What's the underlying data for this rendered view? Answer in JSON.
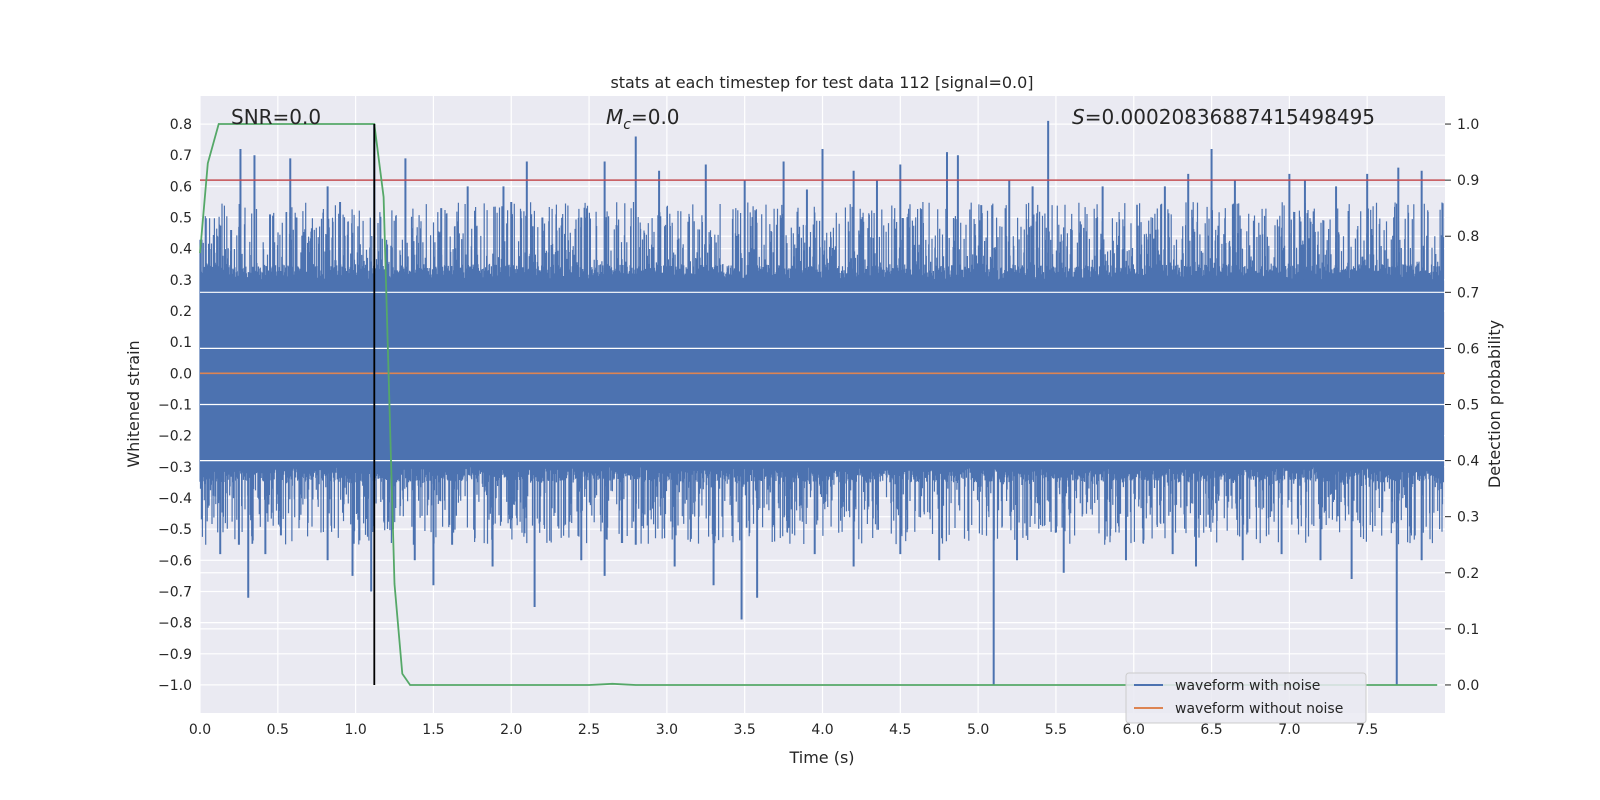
{
  "chart_data": {
    "type": "line",
    "title": "stats at each timestep for test data 112 [signal=0.0]",
    "xlabel": "Time (s)",
    "ylabel": "Whitened strain",
    "y2label": "Detection probability",
    "xlim": [
      0.0,
      8.0
    ],
    "ylim": [
      -1.09,
      0.89
    ],
    "y2lim": [
      -0.05,
      1.05
    ],
    "xticks": [
      0.0,
      0.5,
      1.0,
      1.5,
      2.0,
      2.5,
      3.0,
      3.5,
      4.0,
      4.5,
      5.0,
      5.5,
      6.0,
      6.5,
      7.0,
      7.5
    ],
    "xtick_labels": [
      "0.0",
      "0.5",
      "1.0",
      "1.5",
      "2.0",
      "2.5",
      "3.0",
      "3.5",
      "4.0",
      "4.5",
      "5.0",
      "5.5",
      "6.0",
      "6.5",
      "7.0",
      "7.5"
    ],
    "yticks": [
      0.8,
      0.7,
      0.6,
      0.5,
      0.4,
      0.3,
      0.2,
      0.1,
      0.0,
      -0.1,
      -0.2,
      -0.3,
      -0.4,
      -0.5,
      -0.6,
      -0.7,
      -0.8,
      -0.9,
      -1.0
    ],
    "ytick_labels": [
      "0.8",
      "0.7",
      "0.6",
      "0.5",
      "0.4",
      "0.3",
      "0.2",
      "0.1",
      "0.0",
      "−0.1",
      "−0.2",
      "−0.3",
      "−0.4",
      "−0.5",
      "−0.6",
      "−0.7",
      "−0.8",
      "−0.9",
      "−1.0"
    ],
    "y2ticks": [
      1.0,
      0.9,
      0.8,
      0.7,
      0.6,
      0.5,
      0.4,
      0.3,
      0.2,
      0.1,
      0.0
    ],
    "y2tick_labels": [
      "1.0",
      "0.9",
      "0.8",
      "0.7",
      "0.6",
      "0.5",
      "0.4",
      "0.3",
      "0.2",
      "0.1",
      "0.0"
    ],
    "grid": true,
    "annotations": {
      "snr": "SNR=0.0",
      "mc_symbol": "M",
      "mc_sub": "c",
      "mc_value": "=0.0",
      "s_symbol": "S",
      "s_value": "=0.00020836887415498495"
    },
    "noise_band": {
      "core_abs": 0.3,
      "typical_peak": [
        0.35,
        0.55
      ],
      "seed": 112
    },
    "series": [
      {
        "name": "waveform with noise",
        "color": "#4c72b0",
        "axis": "left",
        "spikes_up": [
          [
            0.07,
            0.34
          ],
          [
            0.2,
            0.46
          ],
          [
            0.26,
            0.72
          ],
          [
            0.35,
            0.7
          ],
          [
            0.45,
            0.51
          ],
          [
            0.58,
            0.69
          ],
          [
            0.62,
            0.5
          ],
          [
            0.82,
            0.6
          ],
          [
            0.9,
            0.55
          ],
          [
            1.12,
            0.8
          ],
          [
            1.32,
            0.69
          ],
          [
            1.55,
            0.53
          ],
          [
            1.72,
            0.6
          ],
          [
            1.95,
            0.6
          ],
          [
            2.0,
            0.55
          ],
          [
            2.1,
            0.68
          ],
          [
            2.2,
            0.5
          ],
          [
            2.45,
            0.5
          ],
          [
            2.6,
            0.68
          ],
          [
            2.8,
            0.76
          ],
          [
            2.95,
            0.65
          ],
          [
            3.25,
            0.67
          ],
          [
            3.5,
            0.62
          ],
          [
            3.75,
            0.68
          ],
          [
            3.9,
            0.59
          ],
          [
            4.0,
            0.72
          ],
          [
            4.2,
            0.65
          ],
          [
            4.35,
            0.62
          ],
          [
            4.5,
            0.67
          ],
          [
            4.8,
            0.71
          ],
          [
            4.87,
            0.7
          ],
          [
            5.02,
            0.54
          ],
          [
            5.2,
            0.62
          ],
          [
            5.35,
            0.6
          ],
          [
            5.45,
            0.81
          ],
          [
            5.8,
            0.6
          ],
          [
            6.2,
            0.6
          ],
          [
            6.35,
            0.64
          ],
          [
            6.5,
            0.72
          ],
          [
            6.65,
            0.62
          ],
          [
            7.0,
            0.64
          ],
          [
            7.1,
            0.62
          ],
          [
            7.3,
            0.6
          ],
          [
            7.5,
            0.64
          ],
          [
            7.7,
            0.66
          ],
          [
            7.85,
            0.65
          ]
        ],
        "spikes_down": [
          [
            0.13,
            -0.58
          ],
          [
            0.25,
            -0.55
          ],
          [
            0.31,
            -0.72
          ],
          [
            0.42,
            -0.58
          ],
          [
            0.52,
            -0.52
          ],
          [
            0.82,
            -0.6
          ],
          [
            0.98,
            -0.65
          ],
          [
            1.1,
            -0.7
          ],
          [
            1.24,
            -0.5
          ],
          [
            1.38,
            -0.6
          ],
          [
            1.5,
            -0.68
          ],
          [
            1.62,
            -0.55
          ],
          [
            1.88,
            -0.62
          ],
          [
            2.15,
            -0.75
          ],
          [
            2.45,
            -0.6
          ],
          [
            2.6,
            -0.65
          ],
          [
            2.8,
            -0.55
          ],
          [
            3.05,
            -0.62
          ],
          [
            3.3,
            -0.68
          ],
          [
            3.48,
            -0.79
          ],
          [
            3.58,
            -0.72
          ],
          [
            3.95,
            -0.58
          ],
          [
            4.2,
            -0.62
          ],
          [
            4.5,
            -0.58
          ],
          [
            4.75,
            -0.6
          ],
          [
            5.1,
            -1.0
          ],
          [
            5.25,
            -0.6
          ],
          [
            5.55,
            -0.64
          ],
          [
            5.95,
            -0.6
          ],
          [
            6.25,
            -0.58
          ],
          [
            6.4,
            -0.62
          ],
          [
            6.7,
            -0.6
          ],
          [
            6.95,
            -0.58
          ],
          [
            7.2,
            -0.6
          ],
          [
            7.4,
            -0.66
          ],
          [
            7.69,
            -1.0
          ],
          [
            7.85,
            -0.6
          ]
        ]
      },
      {
        "name": "waveform without noise",
        "color": "#dd8452",
        "axis": "left",
        "x": [
          0.0,
          8.0
        ],
        "y": [
          0.0,
          0.0
        ]
      },
      {
        "name": "detection probability",
        "color": "#55a868",
        "axis": "right",
        "x": [
          0.0,
          0.05,
          0.12,
          0.2,
          0.4,
          0.6,
          0.8,
          1.0,
          1.05,
          1.08,
          1.12,
          1.18,
          1.25,
          1.3,
          1.35,
          1.4,
          1.5,
          2.0,
          2.5,
          2.65,
          2.8,
          3.0,
          4.0,
          5.0,
          6.0,
          7.0,
          7.95
        ],
        "y": [
          0.77,
          0.93,
          1.0,
          1.0,
          1.0,
          1.0,
          1.0,
          1.0,
          1.0,
          1.0,
          1.0,
          0.87,
          0.18,
          0.02,
          0.0,
          0.0,
          0.0,
          0.0,
          0.0,
          0.002,
          0.0,
          0.0,
          0.0,
          0.0,
          0.0,
          0.0,
          0.0
        ]
      }
    ],
    "threshold": {
      "color": "#c44e52",
      "axis": "right",
      "y": 0.9
    },
    "marker_line": {
      "color": "#000000",
      "x": 1.12,
      "axis": "right",
      "from": 0.0,
      "to": 1.0
    },
    "legend": {
      "location": "bottom-right",
      "entries": [
        {
          "label": "waveform with noise",
          "color": "#4c72b0"
        },
        {
          "label": "waveform without noise",
          "color": "#dd8452"
        }
      ]
    },
    "colors": {
      "axes_bg": "#eaeaf2",
      "grid": "#ffffff",
      "text": "#262626"
    }
  }
}
